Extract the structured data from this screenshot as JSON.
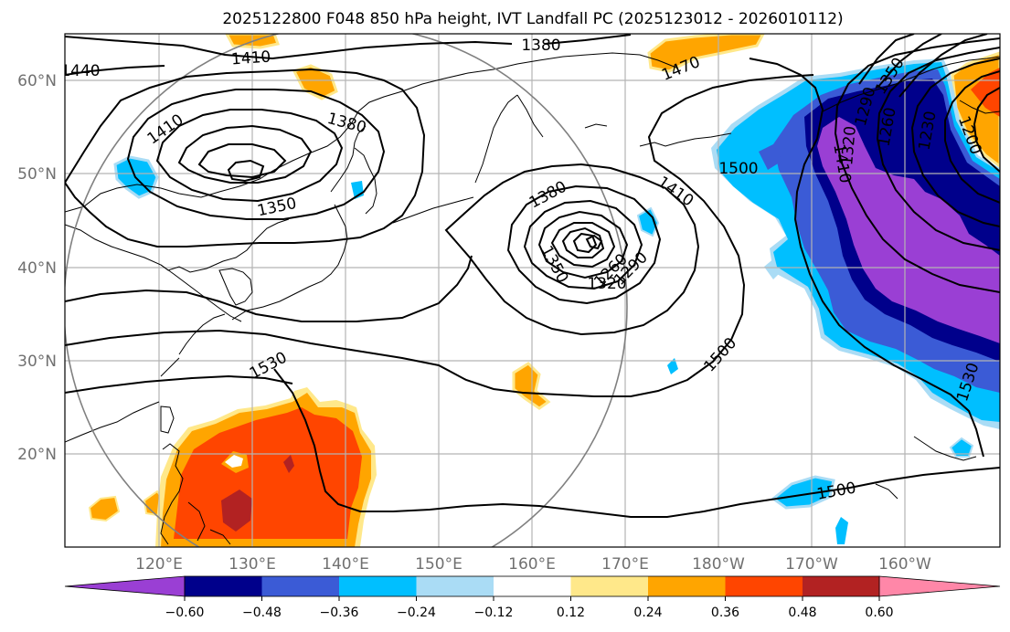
{
  "title": "2025122800 F048 850 hPa height, IVT Landfall PC (2025123012 - 2026010112)",
  "lon_ticks": [
    "120°E",
    "130°E",
    "140°E",
    "150°E",
    "160°E",
    "170°E",
    "180°W",
    "170°W",
    "160°W"
  ],
  "lat_ticks": [
    "60°N",
    "50°N",
    "40°N",
    "30°N",
    "20°N"
  ],
  "colorbar": {
    "colors": [
      "#9a3fd4",
      "#00008b",
      "#3b5bd6",
      "#00bfff",
      "#aadcf5",
      "#ffffff",
      "#ffe88a",
      "#ffa500",
      "#ff4500",
      "#b22222",
      "#ff87a8"
    ],
    "ticks": [
      "−0.60",
      "−0.48",
      "−0.36",
      "−0.24",
      "−0.12",
      "0.12",
      "0.24",
      "0.36",
      "0.48",
      "0.60"
    ]
  },
  "contour_labels": {
    "c1440": "1440",
    "c1410a": "1410",
    "c1380a": "1380",
    "c1470": "1470",
    "c1350a": "1350",
    "c1410b": "1410",
    "c1380b": "1380",
    "c1350b": "1350",
    "c1410c": "1410",
    "c1380c": "1380",
    "c1350c": "1350",
    "c1320": "1320",
    "c1290": "1290",
    "c1260a": "1260",
    "c1500a": "1500",
    "c1530a": "1530",
    "c1500b": "1500",
    "c1500c": "1500",
    "c1530b": "1530",
    "c1410d": "1410",
    "c1320b": "1320",
    "c1290b": "1290",
    "c1260b": "1260",
    "c1230": "1230",
    "c1200": "1200"
  }
}
